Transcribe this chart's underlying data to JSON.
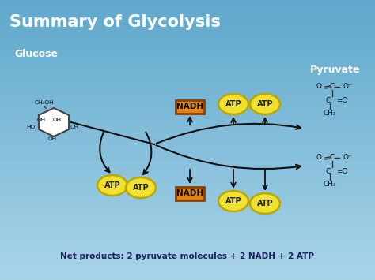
{
  "title": "Summary of Glycolysis",
  "bg_color_top": "#5fa8cc",
  "bg_color_bottom": "#aad4e8",
  "title_color": "#ffffff",
  "glucose_label": "Glucose",
  "pyruvate_label": "Pyruvate",
  "net_products": "Net products: 2 pyruvate molecules + 2 NADH + 2 ATP",
  "atp_color": "#f0e030",
  "atp_outline": "#b8a800",
  "atp_text_color": "#222200",
  "nadh_bg": "#e08010",
  "nadh_text": "#111100",
  "nadh_border": "#904000",
  "arrow_color": "#111111",
  "mol_color": "#111111",
  "glucose_ring_color": "#ffffff",
  "glucose_ring_outline": "#444444",
  "net_text_color": "#1a2060"
}
